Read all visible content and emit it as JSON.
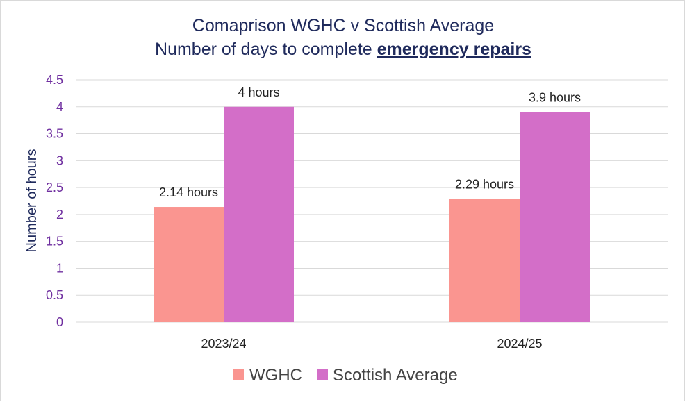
{
  "chart_data": {
    "type": "bar",
    "title_line1": "Comaprison WGHC v Scottish Average",
    "title_line2_prefix": "Number of days to complete ",
    "title_line2_emphasis": "emergency repairs",
    "ylabel": "Number of hours",
    "xlabel": "",
    "ylim": [
      0,
      4.5
    ],
    "yticks": [
      "0",
      "0.5",
      "1",
      "1.5",
      "2",
      "2.5",
      "3",
      "3.5",
      "4",
      "4.5"
    ],
    "grid": true,
    "legend_position": "bottom",
    "categories": [
      "2023/24",
      "2024/25"
    ],
    "series": [
      {
        "name": "WGHC",
        "color": "#fa9590",
        "values": [
          2.14,
          2.29
        ],
        "labels": [
          "2.14  hours",
          "2.29 hours"
        ]
      },
      {
        "name": "Scottish Average",
        "color": "#d36ec8",
        "values": [
          4,
          3.9
        ],
        "labels": [
          "4 hours",
          "3.9 hours"
        ]
      }
    ]
  }
}
